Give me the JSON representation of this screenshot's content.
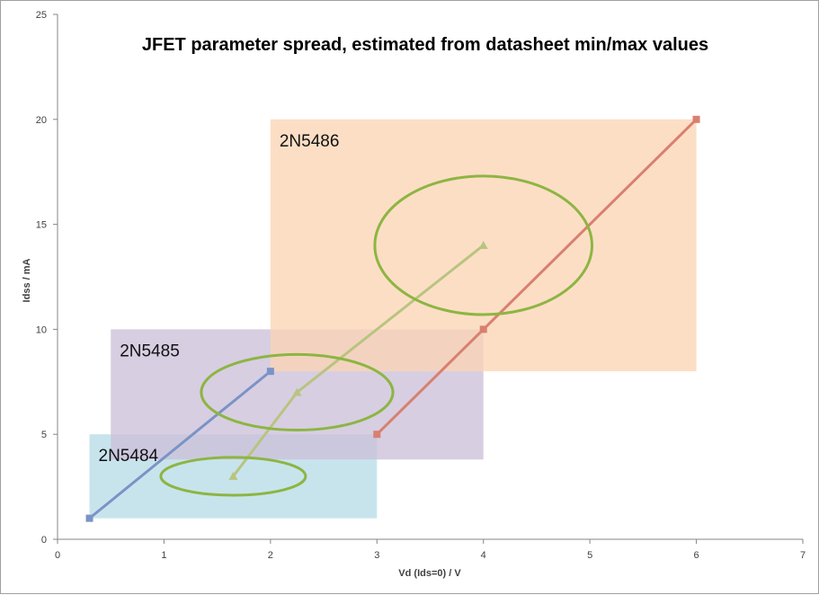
{
  "chart_data": {
    "type": "scatter",
    "title": "JFET parameter spread, estimated from datasheet min/max values",
    "xlabel": "Vd (Ids=0)  / V",
    "ylabel": "Idss  / mA",
    "xlim": [
      0,
      7
    ],
    "ylim": [
      0,
      25
    ],
    "x_ticks": [
      "0",
      "1",
      "2",
      "3",
      "4",
      "5",
      "6",
      "7"
    ],
    "y_ticks": [
      "0",
      "5",
      "10",
      "15",
      "20",
      "25"
    ],
    "grid": false,
    "legend": "none",
    "regions": [
      {
        "label": "2N5484",
        "x": [
          0.3,
          3.0
        ],
        "y": [
          1.0,
          5.0
        ],
        "color": "#b7dde8"
      },
      {
        "label": "2N5485",
        "x": [
          0.5,
          4.0
        ],
        "y": [
          3.8,
          10.0
        ],
        "color": "#ccc0da"
      },
      {
        "label": "2N5486",
        "x": [
          2.0,
          6.0
        ],
        "y": [
          8.0,
          20.0
        ],
        "color": "#fbd5b5"
      }
    ],
    "series": [
      {
        "points": [
          [
            0.3,
            1
          ],
          [
            2.0,
            8
          ]
        ],
        "marker": "square",
        "color": "#7b93c5"
      },
      {
        "points": [
          [
            3.0,
            5
          ],
          [
            4.0,
            10
          ],
          [
            6.0,
            20
          ]
        ],
        "marker": "square",
        "color": "#d98070"
      },
      {
        "points": [
          [
            1.65,
            3
          ],
          [
            2.25,
            7
          ],
          [
            4.0,
            14
          ]
        ],
        "marker": "triangle",
        "color": "#b8c480"
      }
    ],
    "ellipses": [
      {
        "cx": 1.65,
        "cy": 3,
        "rx": 0.68,
        "ry": 0.9,
        "color": "#8db542"
      },
      {
        "cx": 2.25,
        "cy": 7,
        "rx": 0.9,
        "ry": 1.8,
        "color": "#8db542"
      },
      {
        "cx": 4.0,
        "cy": 14,
        "rx": 1.02,
        "ry": 3.3,
        "color": "#8db542"
      }
    ]
  }
}
